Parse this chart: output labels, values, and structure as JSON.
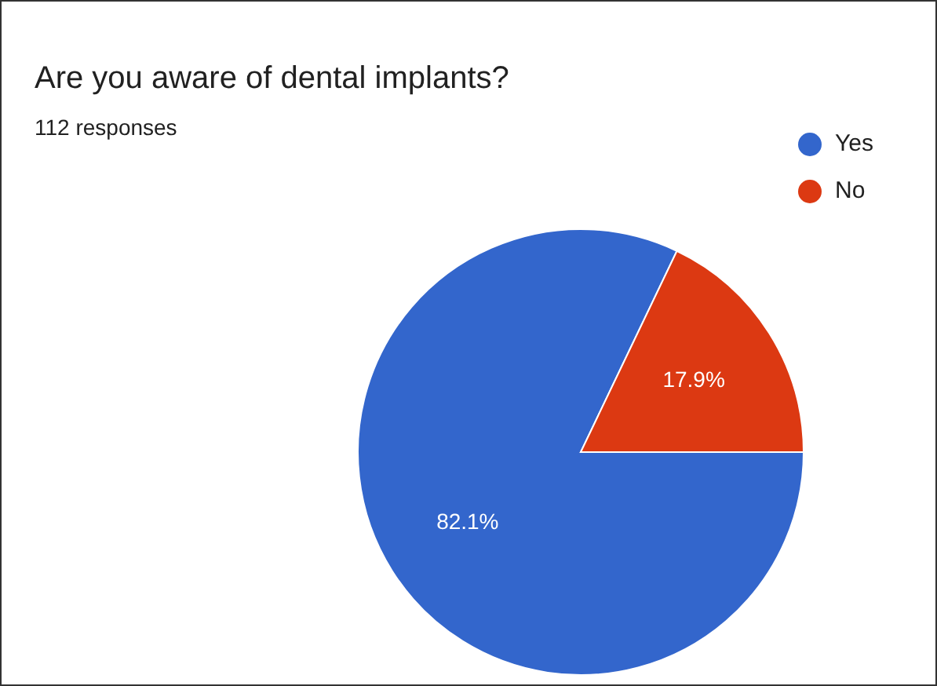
{
  "chart_data": {
    "type": "pie",
    "title": "Are you aware of dental implants?",
    "subtitle": "112 responses",
    "categories": [
      "Yes",
      "No"
    ],
    "values": [
      82.1,
      17.9
    ],
    "colors": [
      "#3366cc",
      "#dc3912"
    ],
    "value_labels": [
      "82.1%",
      "17.9%"
    ],
    "legend": "top right"
  }
}
